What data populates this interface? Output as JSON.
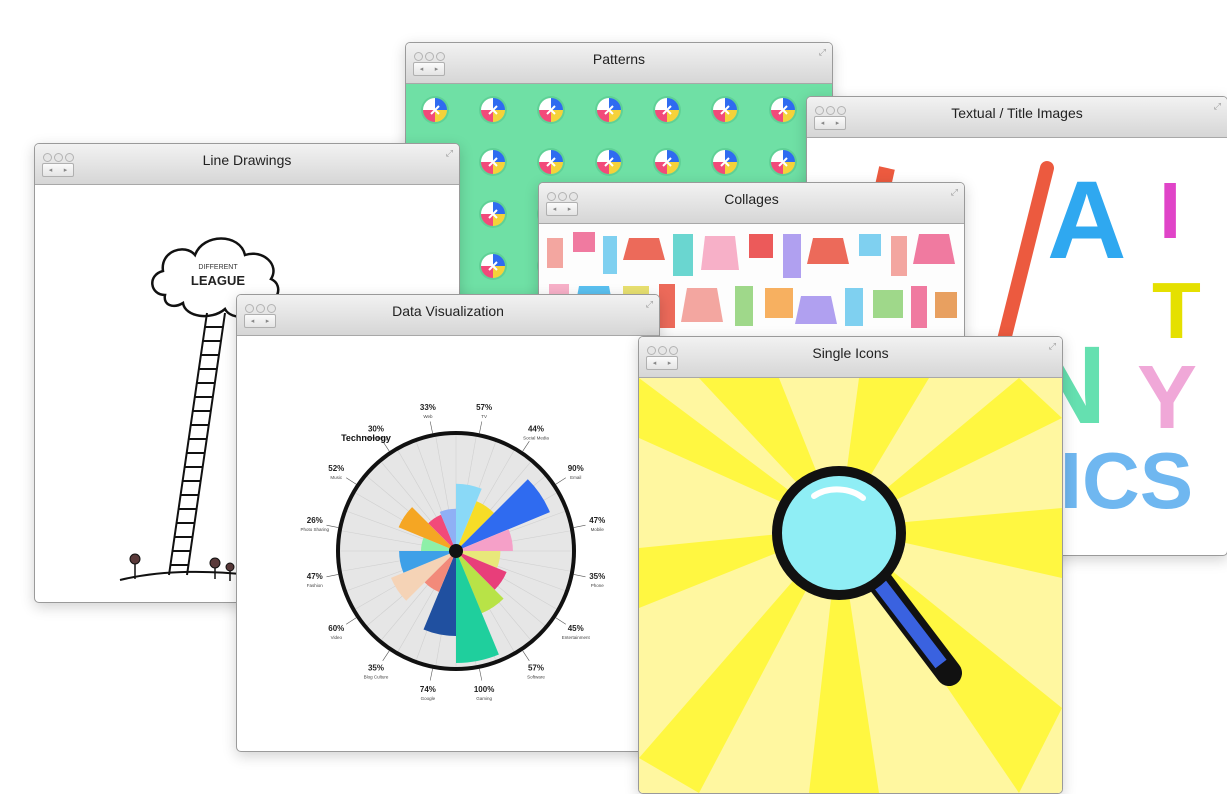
{
  "windows": {
    "patterns": {
      "title": "Patterns"
    },
    "textual": {
      "title": "Textual / Title Images",
      "letters": [
        "A",
        "I",
        "T",
        "N",
        "Y",
        "RICS"
      ]
    },
    "line": {
      "title": "Line Drawings",
      "sign_small": "DIFFERENT",
      "sign_big": "LEAGUE"
    },
    "collages": {
      "title": "Collages"
    },
    "dataviz": {
      "title": "Data Visualization"
    },
    "icons": {
      "title": "Single Icons"
    }
  },
  "controls": {
    "back": "◂",
    "forward": "▸",
    "resize": "⤢"
  },
  "chart_data": {
    "type": "radial-bar",
    "title": "",
    "center_label": "Technology",
    "categories": [
      "TV",
      "Social Media",
      "Email",
      "Mobile",
      "Phone",
      "Entertainment",
      "Software",
      "Gaming",
      "Google",
      "Blog Culture",
      "Video",
      "Fashion",
      "Photo Sharing",
      "Music",
      "Advertising",
      "Web"
    ],
    "values": [
      57,
      44,
      90,
      47,
      35,
      45,
      57,
      100,
      74,
      35,
      60,
      47,
      26,
      52,
      30,
      33
    ],
    "labels": [
      "57%",
      "44%",
      "90%",
      "47%",
      "35%",
      "45%",
      "57%",
      "100%",
      "74%",
      "35%",
      "60%",
      "47%",
      "26%",
      "52%",
      "30%",
      "33%"
    ],
    "colors": [
      "#8ad9f7",
      "#f7dd27",
      "#2f6bf0",
      "#f5a0c8",
      "#e8e87a",
      "#e83e7a",
      "#b8e347",
      "#1fcf9d",
      "#2050a0",
      "#f28a7a",
      "#f5d3b6",
      "#3ea0e8",
      "#8df0a8",
      "#f5a623",
      "#f24a7a",
      "#8fb0f5"
    ]
  }
}
